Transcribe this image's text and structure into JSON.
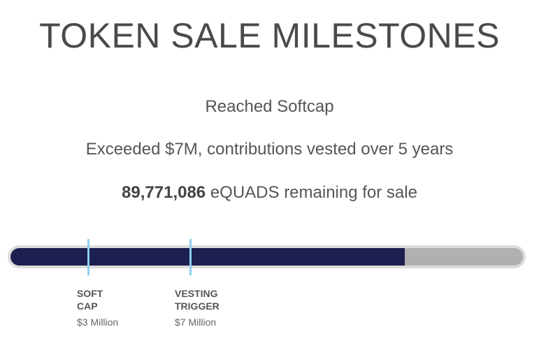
{
  "title": "TOKEN SALE MILESTONES",
  "status": {
    "softcap": "Reached Softcap",
    "vesting": "Exceeded $7M, contributions vested over 5 years",
    "remaining_count": "89,771,086",
    "remaining_suffix": " eQUADS remaining for sale"
  },
  "progress": {
    "fraction": 0.77,
    "fill_color": "#1c1f4f",
    "track_color": "#b0b0b0",
    "marker_color": "#8fd0f2"
  },
  "milestones": [
    {
      "line1": "SOFT",
      "line2": "CAP",
      "amount": "$3 Million"
    },
    {
      "line1": "VESTING",
      "line2": "TRIGGER",
      "amount": "$7 Million"
    }
  ]
}
